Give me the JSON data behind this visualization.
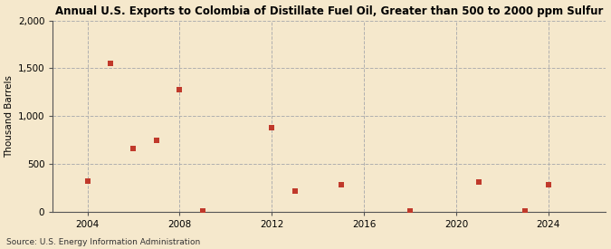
{
  "title": "Annual U.S. Exports to Colombia of Distillate Fuel Oil, Greater than 500 to 2000 ppm Sulfur",
  "ylabel": "Thousand Barrels",
  "source": "Source: U.S. Energy Information Administration",
  "background_color": "#f5e8cc",
  "marker_color": "#c0392b",
  "years": [
    2004,
    2005,
    2006,
    2007,
    2008,
    2009,
    2012,
    2013,
    2015,
    2018,
    2021,
    2023,
    2024
  ],
  "values": [
    320,
    1553,
    660,
    750,
    1280,
    5,
    880,
    215,
    285,
    5,
    315,
    5,
    285
  ],
  "xlim": [
    2002.5,
    2026.5
  ],
  "ylim": [
    0,
    2000
  ],
  "yticks": [
    0,
    500,
    1000,
    1500,
    2000
  ],
  "xticks": [
    2004,
    2008,
    2012,
    2016,
    2020,
    2024
  ]
}
